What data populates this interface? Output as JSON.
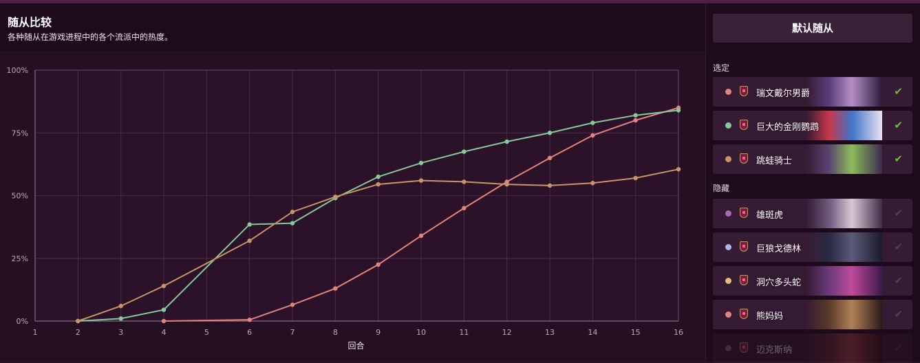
{
  "header": {
    "title": "随从比较",
    "subtitle": "各种随从在游戏进程中的各个流派中的热度。"
  },
  "sidebar": {
    "default_button": "默认随从",
    "selected_label": "选定",
    "hidden_label": "隐藏",
    "selected": [
      {
        "name": "瑞文戴尔男爵",
        "color": "#e3837c"
      },
      {
        "name": "巨大的金刚鹦鹉",
        "color": "#86c99a"
      },
      {
        "name": "跳蛙骑士",
        "color": "#c8946a"
      }
    ],
    "hidden": [
      {
        "name": "雄斑虎",
        "color": "#a56db0"
      },
      {
        "name": "巨狼戈德林",
        "color": "#a8b8e6"
      },
      {
        "name": "洞穴多头蛇",
        "color": "#e0c070"
      },
      {
        "name": "熊妈妈",
        "color": "#e3837c"
      },
      {
        "name": "迈克斯纳",
        "color": "#8a6a88"
      }
    ]
  },
  "chart_data": {
    "type": "line",
    "xlabel": "回合",
    "ylabel": "",
    "x_ticks": [
      1,
      2,
      3,
      4,
      5,
      6,
      7,
      8,
      9,
      10,
      11,
      12,
      13,
      14,
      15,
      16
    ],
    "y_ticks": [
      "0%",
      "25%",
      "50%",
      "75%",
      "100%"
    ],
    "xlim": [
      1,
      16
    ],
    "ylim": [
      0,
      100
    ],
    "grid": true,
    "series": [
      {
        "name": "瑞文戴尔男爵",
        "color": "#e3837c",
        "x": [
          4,
          6,
          7,
          8,
          9,
          10,
          11,
          12,
          13,
          14,
          15,
          16
        ],
        "y": [
          0,
          0.5,
          6.5,
          13,
          22.5,
          34,
          45,
          55.5,
          65,
          74,
          80,
          85
        ]
      },
      {
        "name": "巨大的金刚鹦鹉",
        "color": "#86c99a",
        "x": [
          2,
          3,
          4,
          6,
          7,
          8,
          9,
          10,
          11,
          12,
          13,
          14,
          15,
          16
        ],
        "y": [
          0,
          1,
          4.5,
          38.5,
          39,
          49,
          57.5,
          63,
          67.5,
          71.5,
          75,
          79,
          82,
          84
        ]
      },
      {
        "name": "跳蛙骑士",
        "color": "#c8946a",
        "x": [
          2,
          3,
          4,
          6,
          7,
          8,
          9,
          10,
          11,
          12,
          13,
          14,
          15,
          16
        ],
        "y": [
          0,
          6,
          14,
          32,
          43.5,
          49.5,
          54.5,
          56,
          55.5,
          54.5,
          54,
          55,
          57,
          60.5
        ]
      }
    ]
  }
}
